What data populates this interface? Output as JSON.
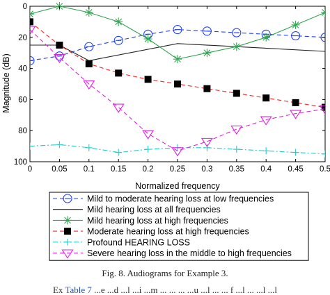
{
  "chart_data": {
    "type": "line",
    "title": "",
    "xlabel": "Normalized frequency",
    "ylabel": "Magnitude (dB)",
    "xlim": [
      0,
      0.5
    ],
    "ylim": [
      100,
      0
    ],
    "y_reversed": true,
    "xticks": [
      0,
      0.05,
      0.1,
      0.15,
      0.2,
      0.25,
      0.3,
      0.35,
      0.4,
      0.45,
      0.5
    ],
    "xtick_labels": [
      "0",
      "0.05",
      "0.1",
      "0.15",
      "0.2",
      "0.25",
      "0.3",
      "0.35",
      "0.4",
      "0.45",
      "0.5"
    ],
    "yticks": [
      0,
      20,
      40,
      60,
      80,
      100
    ],
    "ytick_labels": [
      "0",
      "20",
      "40",
      "60",
      "80",
      "100"
    ],
    "grid": false,
    "legend_position": "below",
    "series": [
      {
        "name": "Mild to moderate hearing loss at low frequencies",
        "color": "#1f3fff",
        "dash": "6,4",
        "marker": "circle",
        "x": [
          0,
          0.05,
          0.1,
          0.15,
          0.2,
          0.25,
          0.3,
          0.35,
          0.4,
          0.45,
          0.5
        ],
        "y": [
          35,
          32,
          26,
          22,
          18,
          15,
          16,
          17,
          18,
          19,
          20
        ]
      },
      {
        "name": "Mild hearing loss at all frequencies",
        "color": "#222222",
        "dash": "",
        "marker": "none",
        "x": [
          0,
          0.05,
          0.1,
          0.25,
          0.35,
          0.5
        ],
        "y": [
          25,
          25,
          35,
          24,
          26,
          29
        ]
      },
      {
        "name": "Mild hearing loss at high frequencies",
        "color": "#2fa84f",
        "dash": "",
        "marker": "star",
        "x": [
          0,
          0.05,
          0.1,
          0.15,
          0.2,
          0.25,
          0.3,
          0.35,
          0.4,
          0.45,
          0.5
        ],
        "y": [
          5,
          0,
          4,
          10,
          21,
          34,
          30,
          26,
          20,
          12,
          4
        ]
      },
      {
        "name": "Moderate hearing loss at high frequencies",
        "color": "#ff2222",
        "dash": "6,4",
        "marker": "square",
        "x": [
          0,
          0.05,
          0.1,
          0.15,
          0.2,
          0.25,
          0.3,
          0.35,
          0.4,
          0.45,
          0.5
        ],
        "y": [
          10,
          25,
          37,
          43,
          47,
          50,
          53,
          56,
          59,
          62,
          65
        ]
      },
      {
        "name": "Profound HEARING LOSS",
        "color": "#22cccc",
        "dash": "7,3,2,3",
        "marker": "plus",
        "x": [
          0,
          0.05,
          0.1,
          0.15,
          0.2,
          0.25,
          0.3,
          0.35,
          0.4,
          0.45,
          0.5
        ],
        "y": [
          90,
          89,
          91,
          94,
          92,
          91,
          91,
          92,
          93,
          94,
          95
        ]
      },
      {
        "name": "Severe hearing loss in the middle to high frequencies",
        "color": "#e020e0",
        "dash": "6,4",
        "marker": "triangle-down",
        "x": [
          0,
          0.05,
          0.1,
          0.15,
          0.2,
          0.25,
          0.3,
          0.35,
          0.4,
          0.45,
          0.5
        ],
        "y": [
          15,
          33,
          50,
          65,
          82,
          93,
          87,
          79,
          73,
          69,
          66
        ]
      }
    ]
  },
  "caption": "Fig. 8.  Audiograms for Example 3.",
  "trailing_text": {
    "lead": "Ex",
    "highlight": "Table 7",
    "rest": "   ...e  ...d  ...l  ...i  ...m  ...  ...  ...  ...u  ...l  ...  ...  f  ...l  ...  ...l  ...l"
  }
}
